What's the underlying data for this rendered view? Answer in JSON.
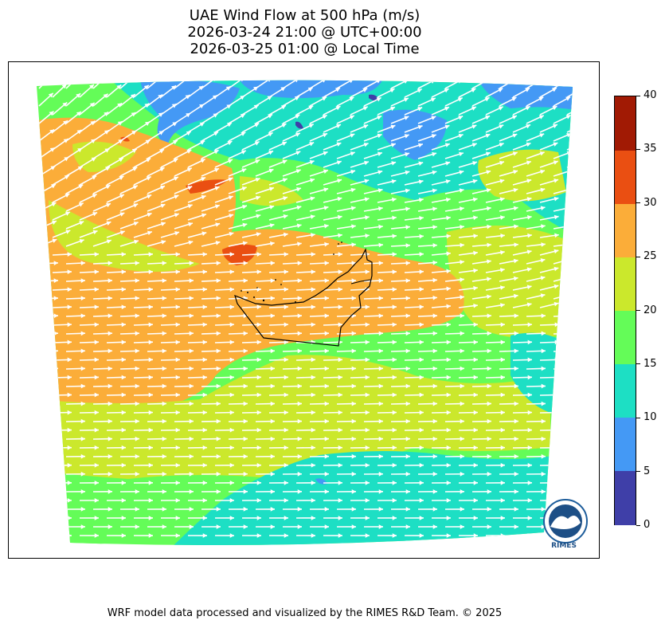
{
  "title": {
    "line1": "UAE Wind Flow at 500 hPa (m/s)",
    "line2": "2026-03-24 21:00 @ UTC+00:00",
    "line3": "2026-03-25 01:00 @ Local Time"
  },
  "colorbar": {
    "labels": [
      "0",
      "5",
      "10",
      "15",
      "20",
      "25",
      "30",
      "35",
      "40"
    ],
    "bins": [
      {
        "min": 0,
        "max": 5,
        "color": "#3f3fa8"
      },
      {
        "min": 5,
        "max": 10,
        "color": "#4499f5"
      },
      {
        "min": 10,
        "max": 15,
        "color": "#1ddfc4"
      },
      {
        "min": 15,
        "max": 20,
        "color": "#64fc58"
      },
      {
        "min": 20,
        "max": 25,
        "color": "#cbe82c"
      },
      {
        "min": 25,
        "max": 30,
        "color": "#fbad39"
      },
      {
        "min": 30,
        "max": 35,
        "color": "#ea4f12"
      },
      {
        "min": 35,
        "max": 40,
        "color": "#a11a04"
      }
    ]
  },
  "logo": {
    "text": "RIMES"
  },
  "footer": "WRF model data processed and visualized by the RIMES R&D Team. © 2025"
}
